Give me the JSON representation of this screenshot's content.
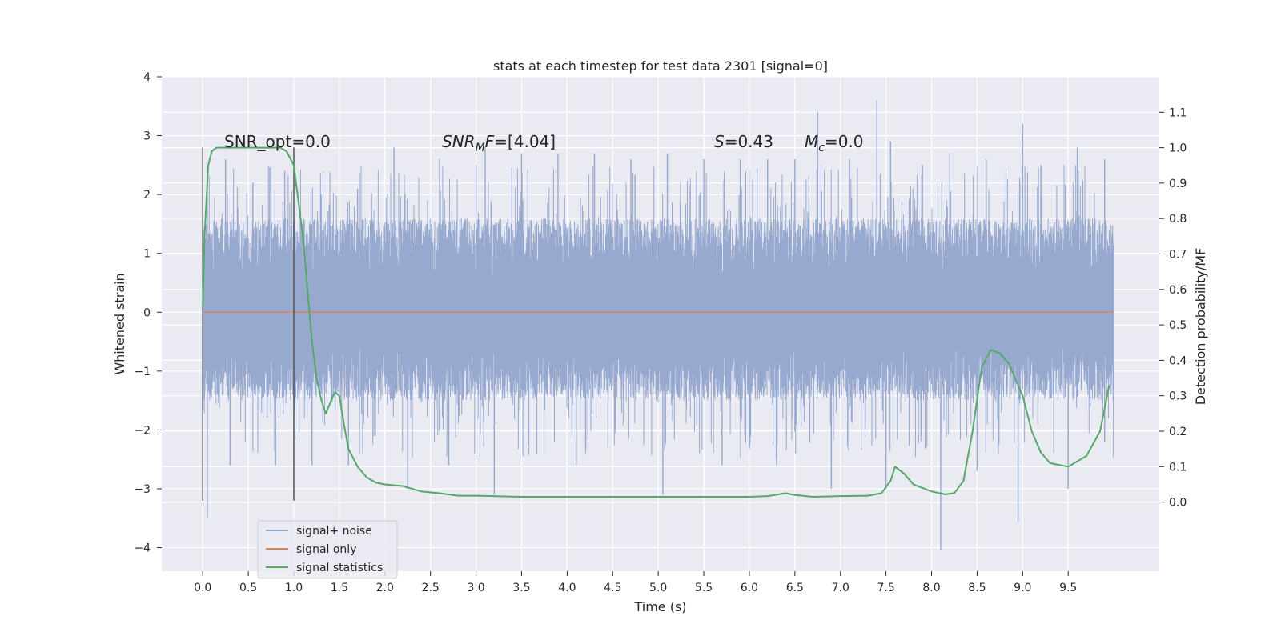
{
  "chart_data": {
    "type": "line",
    "title": "stats at each timestep for test data 2301 [signal=0]",
    "xlabel": "Time (s)",
    "ylabel": "Whitened strain",
    "y2label": "Detection probability/MF",
    "xlim": [
      -0.45,
      10.5
    ],
    "ylim": [
      -4.4,
      4.0
    ],
    "y2lim": [
      -0.195,
      1.2
    ],
    "x_ticks": [
      "0.0",
      "0.5",
      "1.0",
      "1.5",
      "2.0",
      "2.5",
      "3.0",
      "3.5",
      "4.0",
      "4.5",
      "5.0",
      "5.5",
      "6.0",
      "6.5",
      "7.0",
      "7.5",
      "8.0",
      "8.5",
      "9.0",
      "9.5"
    ],
    "x_tick_values": [
      0,
      0.5,
      1,
      1.5,
      2,
      2.5,
      3,
      3.5,
      4,
      4.5,
      5,
      5.5,
      6,
      6.5,
      7,
      7.5,
      8,
      8.5,
      9,
      9.5
    ],
    "y_ticks": [
      "4",
      "3",
      "2",
      "1",
      "0",
      "−1",
      "−2",
      "−3",
      "−4"
    ],
    "y_tick_values": [
      4,
      3,
      2,
      1,
      0,
      -1,
      -2,
      -3,
      -4
    ],
    "y2_ticks": [
      "0.0",
      "0.1",
      "0.2",
      "0.3",
      "0.4",
      "0.5",
      "0.6",
      "0.7",
      "0.8",
      "0.9",
      "1.0",
      "1.1"
    ],
    "y2_tick_values": [
      0,
      0.1,
      0.2,
      0.3,
      0.4,
      0.5,
      0.6,
      0.7,
      0.8,
      0.9,
      1.0,
      1.1
    ],
    "grid": true,
    "legend_position": "bottom-left",
    "annotations": {
      "snr_opt_name": "SNR_opt",
      "snr_opt_value": "=0.0",
      "snr_mf_name": "SNR",
      "snr_mf_sub": "M",
      "snr_mf_tail": "F",
      "snr_mf_value": "=[4.04]",
      "s_name": "S",
      "s_value": "=0.43",
      "mc_name": "M",
      "mc_sub": "c",
      "mc_value": "=0.0"
    },
    "vertical_markers": [
      0.0,
      1.0
    ],
    "series": [
      {
        "name": "signal+ noise",
        "color": "#97a9cf",
        "axis": "left",
        "x_range": [
          0,
          10
        ],
        "envelope_typical": [
          -1.5,
          1.6
        ],
        "peaks_upper": [
          [
            0.05,
            2.5
          ],
          [
            0.25,
            2.6
          ],
          [
            0.55,
            2.2
          ],
          [
            0.9,
            2.4
          ],
          [
            1.3,
            2.0
          ],
          [
            1.7,
            2.1
          ],
          [
            2.1,
            2.8
          ],
          [
            2.6,
            2.6
          ],
          [
            3.1,
            2.8
          ],
          [
            3.5,
            2.7
          ],
          [
            3.9,
            2.7
          ],
          [
            4.3,
            2.7
          ],
          [
            4.7,
            2.6
          ],
          [
            5.1,
            2.7
          ],
          [
            5.5,
            2.6
          ],
          [
            5.9,
            2.6
          ],
          [
            6.2,
            2.6
          ],
          [
            6.5,
            2.6
          ],
          [
            6.75,
            3.4
          ],
          [
            7.1,
            2.6
          ],
          [
            7.4,
            3.6
          ],
          [
            7.55,
            2.9
          ],
          [
            7.9,
            2.5
          ],
          [
            8.2,
            2.7
          ],
          [
            8.6,
            2.6
          ],
          [
            9.0,
            3.2
          ],
          [
            9.2,
            2.5
          ],
          [
            9.6,
            2.8
          ],
          [
            9.9,
            2.6
          ]
        ],
        "peaks_lower": [
          [
            0.05,
            -3.5
          ],
          [
            0.3,
            -2.6
          ],
          [
            0.8,
            -2.6
          ],
          [
            1.2,
            -2.6
          ],
          [
            1.6,
            -2.6
          ],
          [
            2.25,
            -3.0
          ],
          [
            2.7,
            -2.6
          ],
          [
            3.2,
            -3.1
          ],
          [
            4.1,
            -2.6
          ],
          [
            5.05,
            -3.1
          ],
          [
            5.7,
            -2.6
          ],
          [
            6.3,
            -2.6
          ],
          [
            6.9,
            -3.0
          ],
          [
            7.5,
            -3.0
          ],
          [
            8.1,
            -4.05
          ],
          [
            8.5,
            -2.7
          ],
          [
            8.95,
            -3.55
          ],
          [
            9.5,
            -3.0
          ],
          [
            9.9,
            -2.2
          ]
        ]
      },
      {
        "name": "signal only",
        "color": "#dd8452",
        "axis": "left",
        "x": [
          0,
          10
        ],
        "y": [
          0,
          0
        ]
      },
      {
        "name": "signal statistics",
        "color": "#55a868",
        "axis": "right",
        "x": [
          0,
          0.02,
          0.06,
          0.1,
          0.15,
          0.2,
          0.3,
          0.5,
          0.7,
          0.85,
          0.92,
          1.0,
          1.1,
          1.2,
          1.25,
          1.3,
          1.35,
          1.4,
          1.45,
          1.5,
          1.55,
          1.6,
          1.7,
          1.8,
          1.9,
          2.0,
          2.2,
          2.4,
          2.6,
          2.8,
          3.0,
          3.5,
          4.0,
          4.5,
          5.0,
          5.5,
          6.0,
          6.2,
          6.4,
          6.5,
          6.7,
          7.0,
          7.3,
          7.45,
          7.55,
          7.6,
          7.7,
          7.8,
          8.0,
          8.15,
          8.25,
          8.35,
          8.45,
          8.55,
          8.65,
          8.75,
          8.85,
          9.0,
          9.1,
          9.2,
          9.3,
          9.5,
          9.7,
          9.85,
          9.95
        ],
        "y": [
          0.55,
          0.75,
          0.95,
          0.99,
          1.0,
          1.0,
          1.0,
          1.0,
          1.0,
          1.0,
          0.99,
          0.95,
          0.75,
          0.45,
          0.35,
          0.29,
          0.25,
          0.28,
          0.31,
          0.3,
          0.22,
          0.15,
          0.1,
          0.07,
          0.055,
          0.05,
          0.045,
          0.03,
          0.025,
          0.018,
          0.018,
          0.015,
          0.015,
          0.015,
          0.015,
          0.015,
          0.015,
          0.017,
          0.025,
          0.02,
          0.015,
          0.017,
          0.018,
          0.025,
          0.06,
          0.1,
          0.08,
          0.05,
          0.03,
          0.022,
          0.025,
          0.06,
          0.2,
          0.38,
          0.43,
          0.42,
          0.39,
          0.3,
          0.2,
          0.14,
          0.11,
          0.1,
          0.13,
          0.2,
          0.33
        ]
      }
    ]
  }
}
